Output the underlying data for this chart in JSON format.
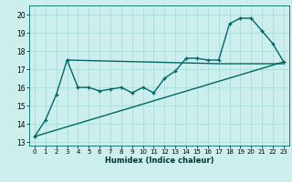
{
  "title": "",
  "xlabel": "Humidex (Indice chaleur)",
  "bg_color": "#cceeed",
  "line_color": "#006666",
  "grid_color": "#aadddb",
  "xlim": [
    -0.5,
    23.5
  ],
  "ylim": [
    12.8,
    20.5
  ],
  "yticks": [
    13,
    14,
    15,
    16,
    17,
    18,
    19,
    20
  ],
  "xticks": [
    0,
    1,
    2,
    3,
    4,
    5,
    6,
    7,
    8,
    9,
    10,
    11,
    12,
    13,
    14,
    15,
    16,
    17,
    18,
    19,
    20,
    21,
    22,
    23
  ],
  "curve1_x": [
    0,
    1,
    2,
    3,
    4,
    5,
    6,
    7,
    8,
    9,
    10,
    11,
    12,
    13,
    14,
    15,
    16,
    17,
    18,
    19,
    20,
    21,
    22,
    23
  ],
  "curve1_y": [
    13.3,
    14.2,
    15.6,
    17.5,
    16.0,
    16.0,
    15.8,
    15.9,
    16.0,
    15.7,
    16.0,
    15.7,
    16.5,
    16.9,
    17.6,
    17.6,
    17.5,
    17.5,
    19.5,
    19.8,
    19.8,
    19.1,
    18.4,
    17.4
  ],
  "curve2_x": [
    3,
    17,
    23
  ],
  "curve2_y": [
    17.5,
    17.3,
    17.3
  ],
  "curve3_x": [
    0,
    23
  ],
  "curve3_y": [
    13.3,
    17.4
  ]
}
